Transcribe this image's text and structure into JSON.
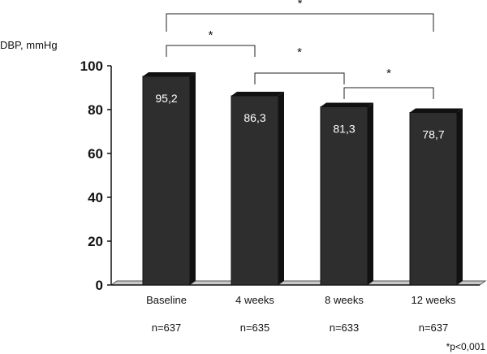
{
  "chart_data": {
    "type": "bar",
    "ylabel": "DBP, mmHg",
    "ylim": [
      0,
      100
    ],
    "yticks": [
      0,
      20,
      40,
      60,
      80,
      100
    ],
    "categories": [
      "Baseline",
      "4 weeks",
      "8 weeks",
      "12 weeks"
    ],
    "values": [
      95.2,
      86.3,
      81.3,
      78.7
    ],
    "value_labels": [
      "95,2",
      "86,3",
      "81,3",
      "78,7"
    ],
    "sample_sizes": [
      "n=637",
      "n=635",
      "n=633",
      "n=637"
    ],
    "bar_color": "#2e2e2e",
    "significance": [
      {
        "from": 0,
        "to": 1,
        "mark": "*"
      },
      {
        "from": 1,
        "to": 2,
        "mark": "*"
      },
      {
        "from": 2,
        "to": 3,
        "mark": "*"
      },
      {
        "from": 0,
        "to": 3,
        "mark": "*"
      }
    ],
    "footnote": "*p<0,001",
    "grid": false
  }
}
